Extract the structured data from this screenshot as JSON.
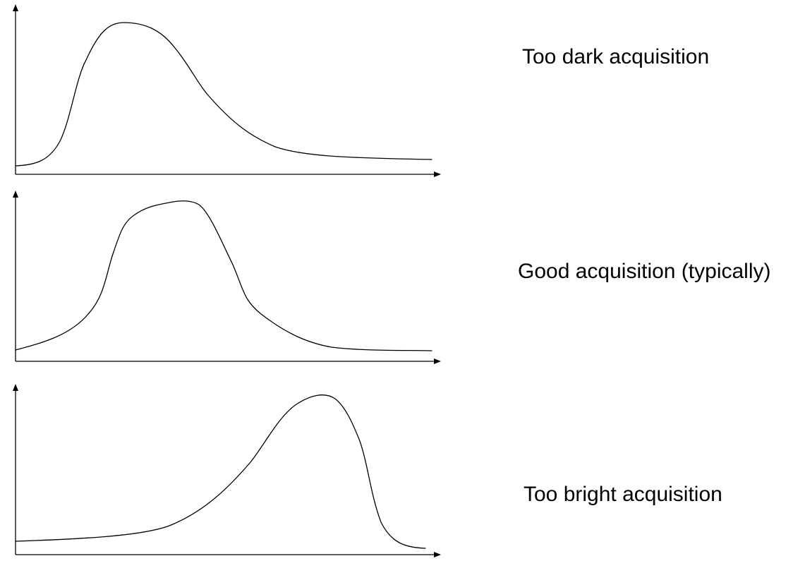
{
  "panels": [
    {
      "label": "Too dark acquisition",
      "curve": "dark-skewed"
    },
    {
      "label": "Good acquisition (typically)",
      "curve": "centered"
    },
    {
      "label": "Too bright acquisition",
      "curve": "bright-skewed"
    }
  ],
  "colors": {
    "background": "#ffffff",
    "ink": "#000000"
  }
}
